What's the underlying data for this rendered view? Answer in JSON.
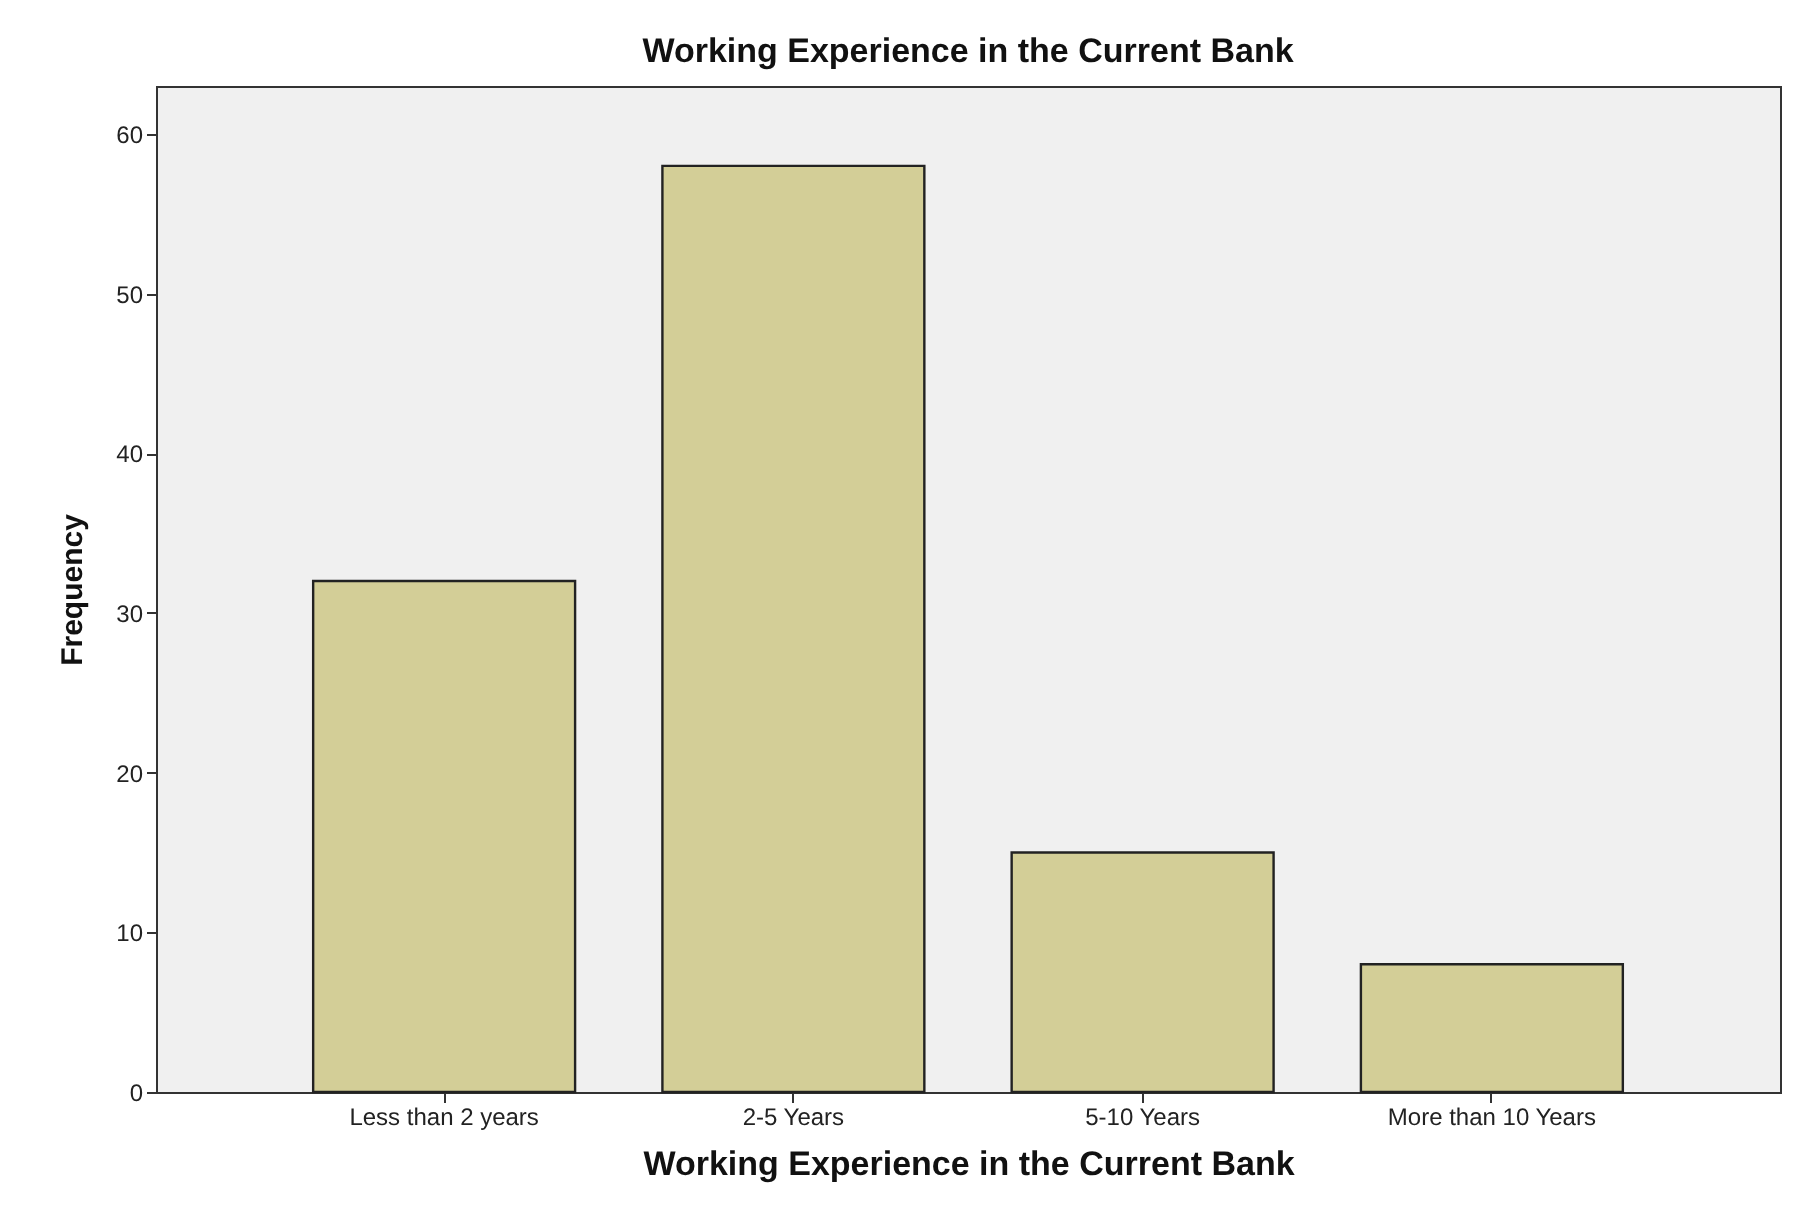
{
  "chart_data": {
    "type": "bar",
    "title": "Working Experience in the Current Bank",
    "xlabel": "Working Experience in the Current Bank",
    "ylabel": "Frequency",
    "categories": [
      "Less than 2 years",
      "2-5 Years",
      "5-10 Years",
      "More than 10 Years"
    ],
    "values": [
      32,
      58,
      15,
      8
    ],
    "color": "#d3ce97",
    "ylim": [
      0,
      63
    ],
    "yticks": [
      0,
      10,
      20,
      30,
      40,
      50,
      60
    ],
    "grid": false
  }
}
